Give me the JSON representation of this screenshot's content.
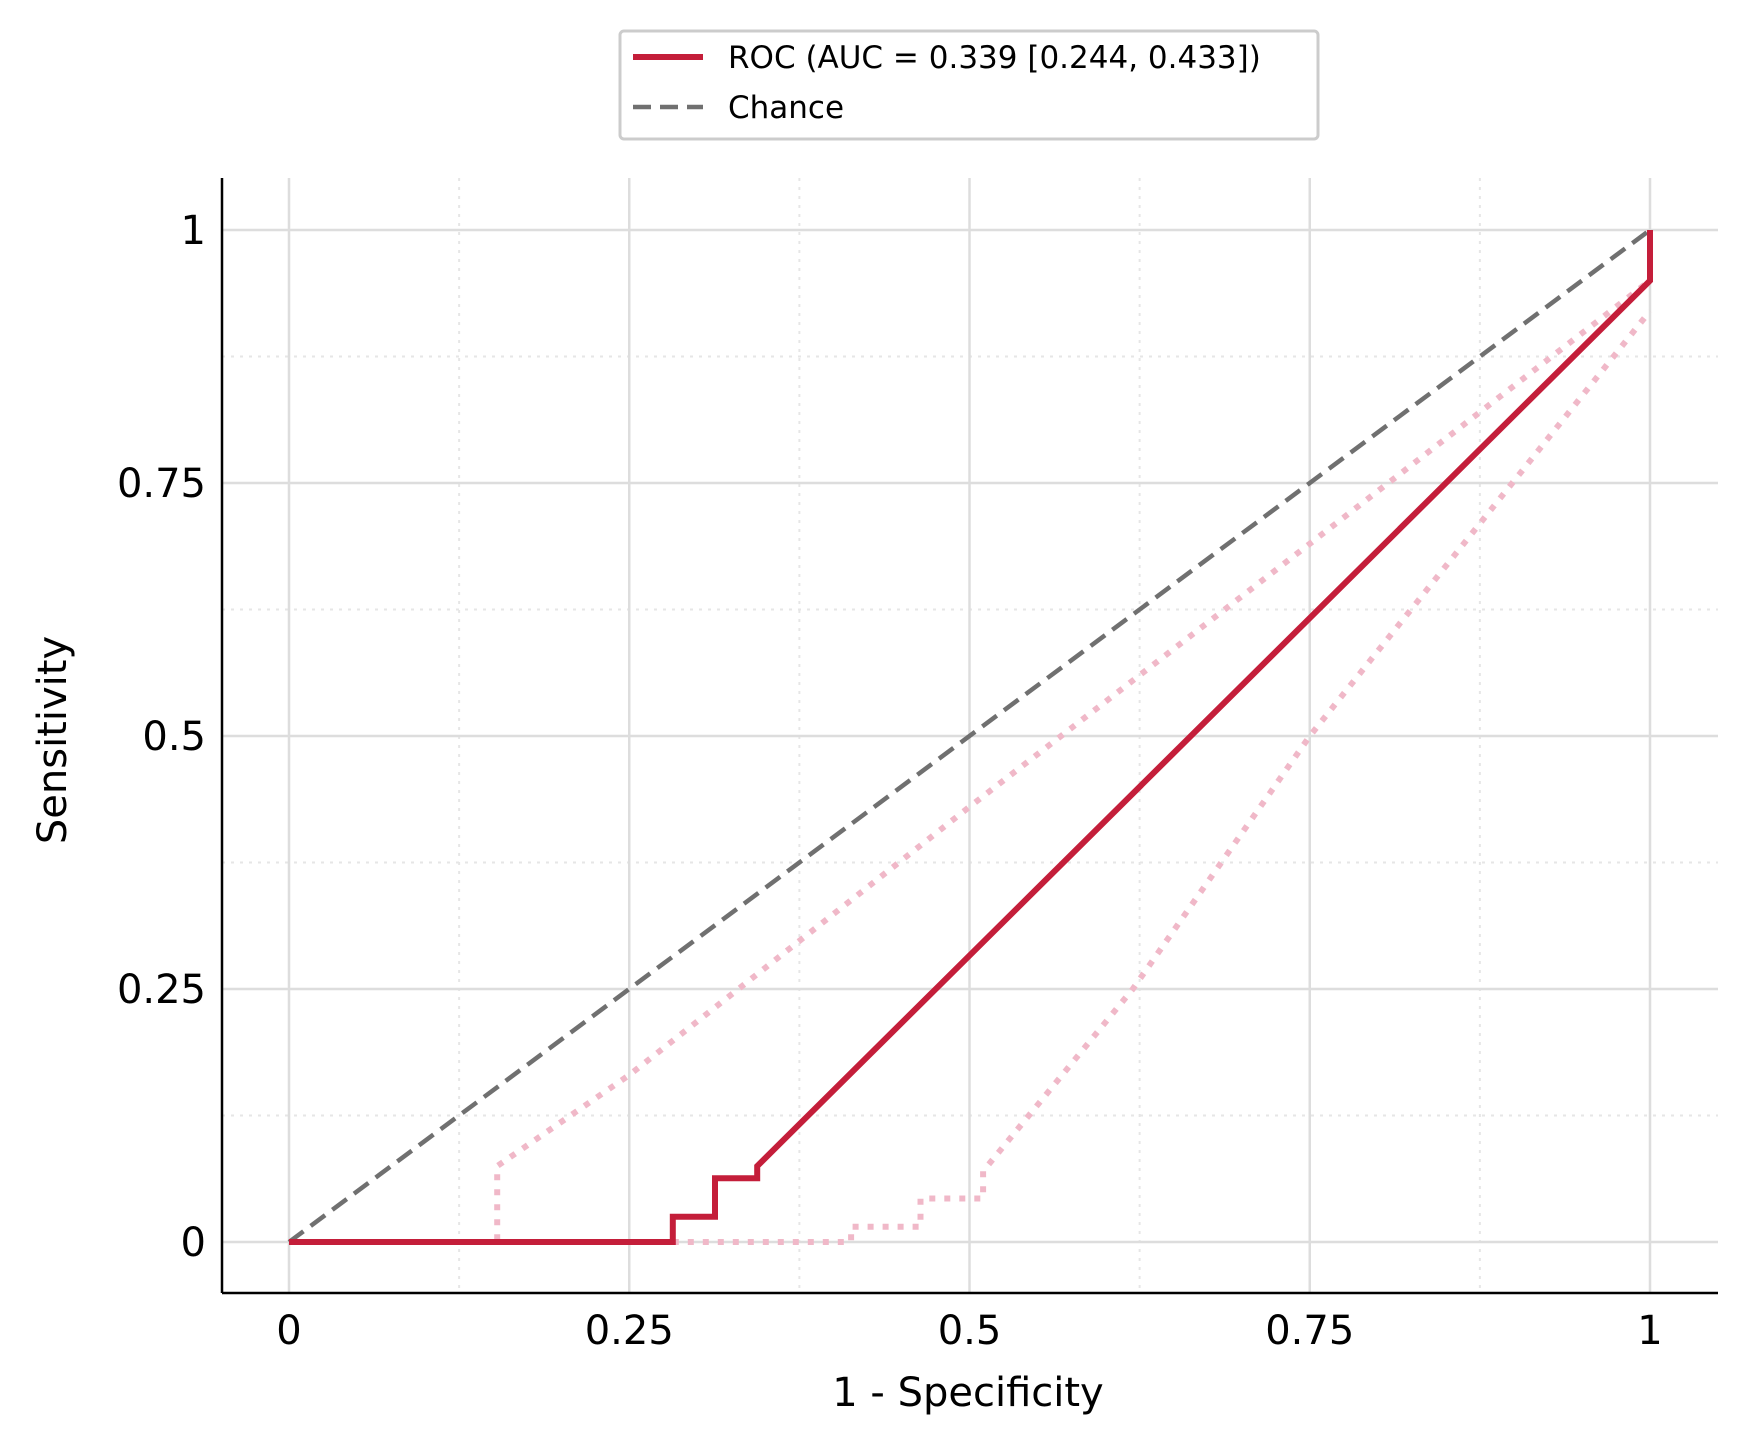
{
  "chart_data": {
    "type": "line",
    "title": "",
    "xlabel": "1 - Specificity",
    "ylabel": "Sensitivity",
    "xlim": [
      -0.05,
      1.05
    ],
    "ylim": [
      -0.05,
      1.05
    ],
    "x_ticks": [
      0,
      0.25,
      0.5,
      0.75,
      1
    ],
    "x_tick_labels": [
      "0",
      "0.25",
      "0.5",
      "0.75",
      "1"
    ],
    "y_ticks": [
      0,
      0.25,
      0.5,
      0.75,
      1
    ],
    "y_tick_labels": [
      "0",
      "0.25",
      "0.5",
      "0.75",
      "1"
    ],
    "minor_ticks": [
      0.125,
      0.375,
      0.625,
      0.875
    ],
    "grid": true,
    "legend_position": "top-center (above plot)",
    "series": [
      {
        "name": "ROC (AUC = 0.339 [0.244, 0.433])",
        "color": "#c41e3a",
        "style": "solid",
        "x": [
          0,
          0.282,
          0.282,
          0.313,
          0.313,
          0.344,
          0.344,
          1.0,
          1.0
        ],
        "y": [
          0,
          0,
          0.025,
          0.025,
          0.063,
          0.063,
          0.075,
          0.95,
          1.0
        ]
      },
      {
        "name": "Chance",
        "color": "#707070",
        "style": "dashed",
        "x": [
          0,
          1
        ],
        "y": [
          0,
          1
        ]
      }
    ],
    "ci_bands": {
      "color": "#f0b8c8",
      "style": "dotted",
      "upper": {
        "x": [
          0,
          0.153,
          0.153,
          0.25,
          0.5,
          0.75,
          1.0
        ],
        "y": [
          0,
          0,
          0.075,
          0.165,
          0.43,
          0.69,
          0.95
        ]
      },
      "lower": {
        "x": [
          0.282,
          0.413,
          0.413,
          0.464,
          0.464,
          0.51,
          0.51,
          0.62,
          0.75,
          1.0
        ],
        "y": [
          0,
          0,
          0.015,
          0.015,
          0.043,
          0.043,
          0.07,
          0.25,
          0.5,
          0.92
        ]
      }
    }
  }
}
